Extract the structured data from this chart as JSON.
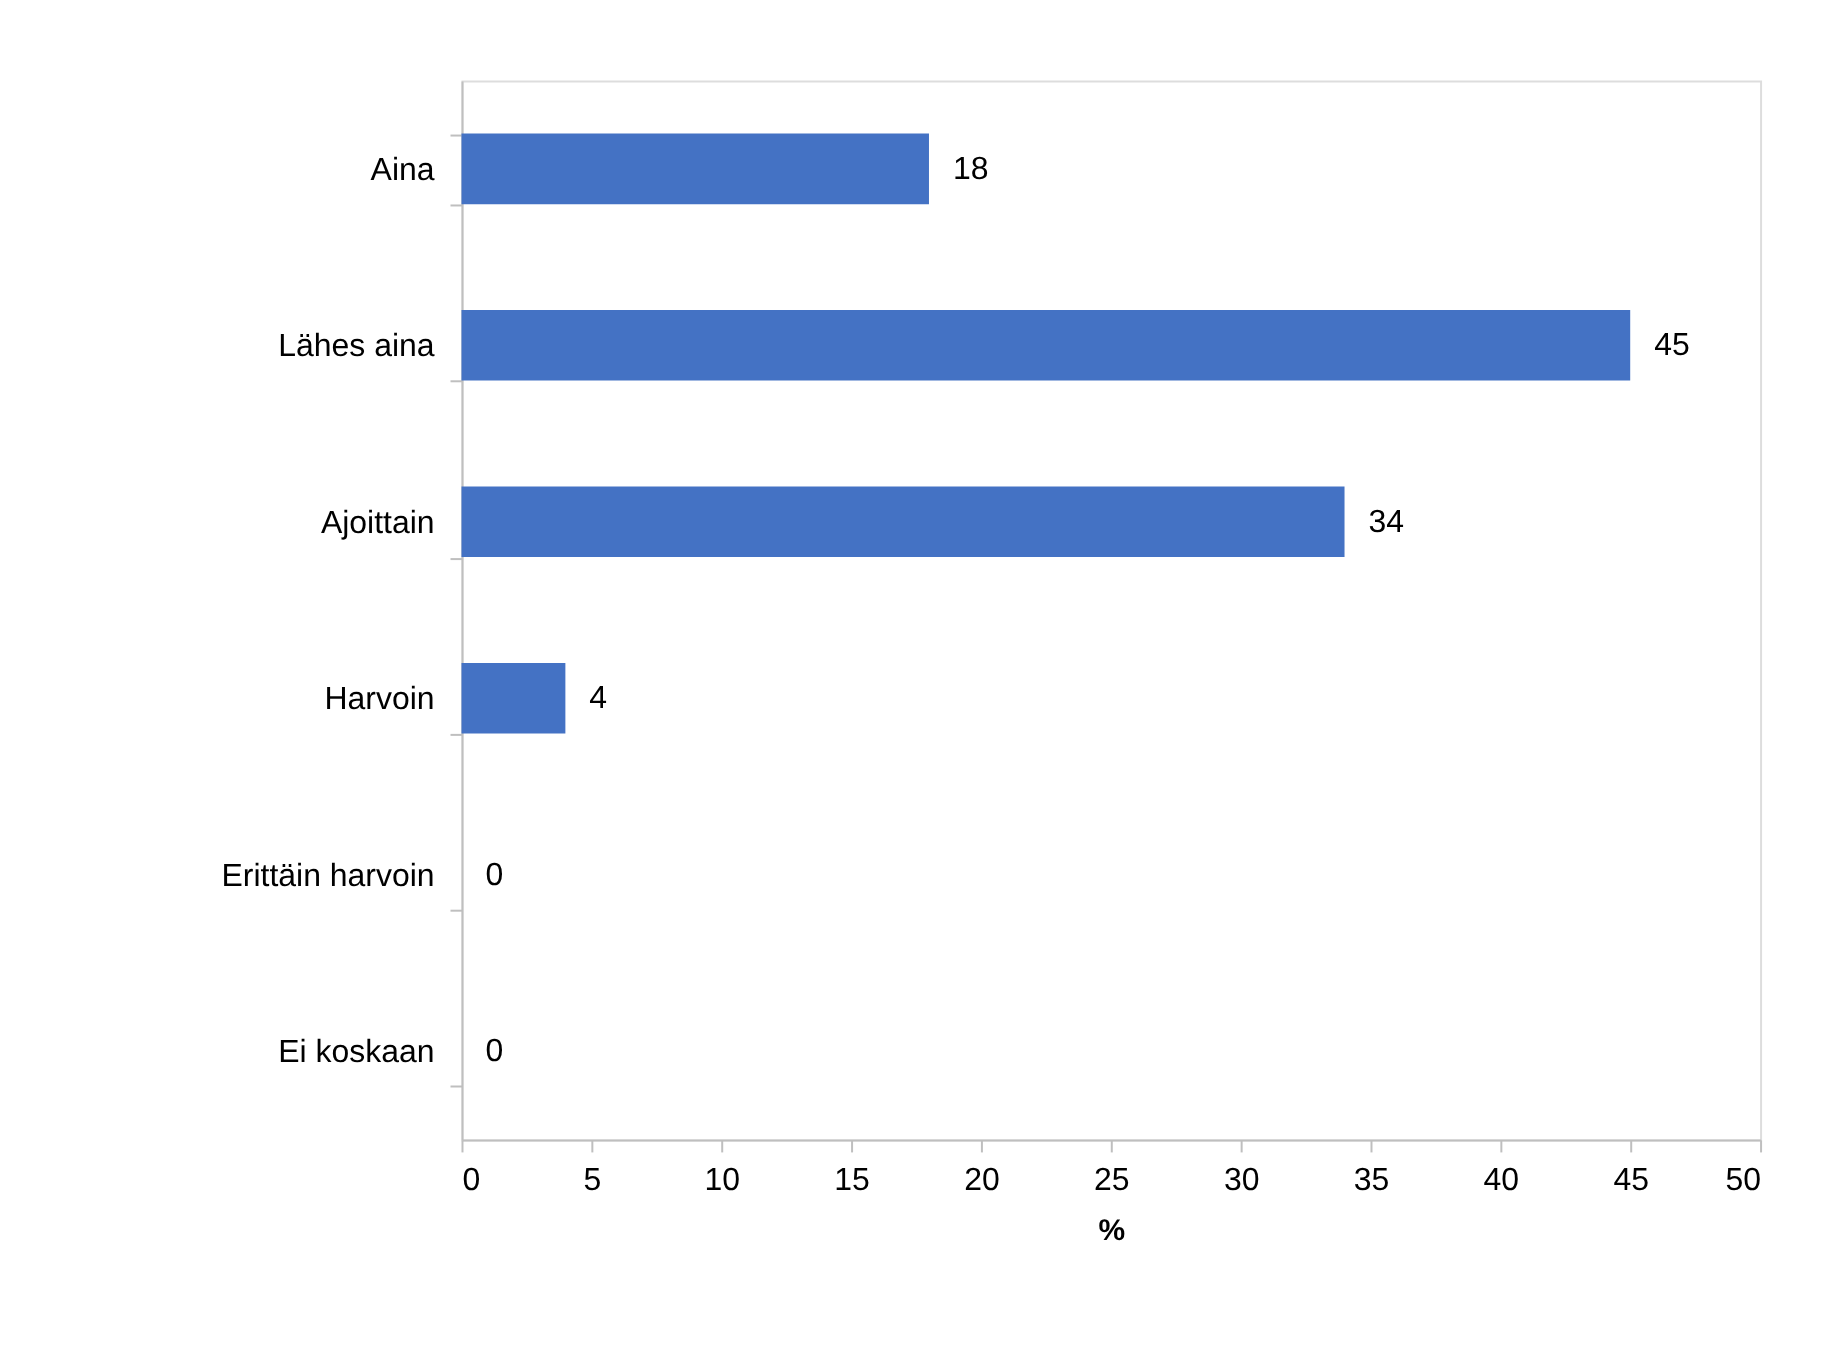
{
  "chart_data": {
    "type": "bar",
    "orientation": "horizontal",
    "categories": [
      "Aina",
      "Lähes aina",
      "Ajoittain",
      "Harvoin",
      "Erittäin harvoin",
      "Ei koskaan"
    ],
    "values": [
      18,
      45,
      34,
      4,
      0,
      0
    ],
    "color": "#4472c4",
    "xlabel": "%",
    "xlim": [
      0,
      50
    ],
    "xticks": [
      0,
      5,
      10,
      15,
      20,
      25,
      30,
      35,
      40,
      45,
      50
    ],
    "data_labels": true,
    "grid": false
  }
}
